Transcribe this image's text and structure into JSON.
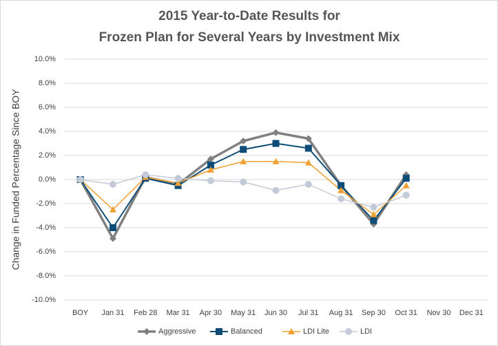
{
  "chart_data": {
    "type": "line",
    "title": [
      "2015 Year-to-Date Results for",
      "Frozen Plan for Several Years by Investment Mix"
    ],
    "y_label": "Change in Funded Percentage Since BOY",
    "categories": [
      "BOY",
      "Jan 31",
      "Feb 28",
      "Mar 31",
      "Apr 30",
      "May 31",
      "Jun 30",
      "Jul 31",
      "Aug 31",
      "Sep 30",
      "Oct 31",
      "Nov 30",
      "Dec 31"
    ],
    "series": [
      {
        "name": "Aggressive",
        "color": "#808080",
        "marker": "diamond",
        "values": [
          0,
          -4.9,
          0.2,
          -0.4,
          1.7,
          3.2,
          3.9,
          3.4,
          -0.5,
          -3.7,
          0.4,
          null,
          null
        ]
      },
      {
        "name": "Balanced",
        "color": "#0e4c78",
        "marker": "square",
        "values": [
          0,
          -4.0,
          0.1,
          -0.5,
          1.2,
          2.5,
          3.0,
          2.6,
          -0.5,
          -3.4,
          0.1,
          null,
          null
        ]
      },
      {
        "name": "LDI Lite",
        "color": "#f0a030",
        "marker": "triangle",
        "values": [
          0,
          -2.5,
          0.2,
          -0.3,
          0.8,
          1.5,
          1.5,
          1.4,
          -0.9,
          -2.9,
          -0.5,
          null,
          null
        ]
      },
      {
        "name": "LDI",
        "color": "#c3cbd9",
        "marker": "circle",
        "values": [
          0,
          -0.4,
          0.4,
          0.1,
          -0.1,
          -0.2,
          -0.9,
          -0.4,
          -1.6,
          -2.3,
          -1.3,
          null,
          null
        ]
      }
    ],
    "ylim": [
      -10,
      10
    ],
    "yticks": [
      {
        "value": -10,
        "label": "-10.0%"
      },
      {
        "value": -8,
        "label": "-8.0%"
      },
      {
        "value": -6,
        "label": "-6.0%"
      },
      {
        "value": -4,
        "label": "-4.0%"
      },
      {
        "value": -2,
        "label": "-2.0%"
      },
      {
        "value": 0,
        "label": "0.0%"
      },
      {
        "value": 2,
        "label": "2.0%"
      },
      {
        "value": 4,
        "label": "4.0%"
      },
      {
        "value": 6,
        "label": "6.0%"
      },
      {
        "value": 8,
        "label": "8.0%"
      },
      {
        "value": 10,
        "label": "10.0%"
      }
    ],
    "grid": true,
    "legend": "bottom"
  }
}
